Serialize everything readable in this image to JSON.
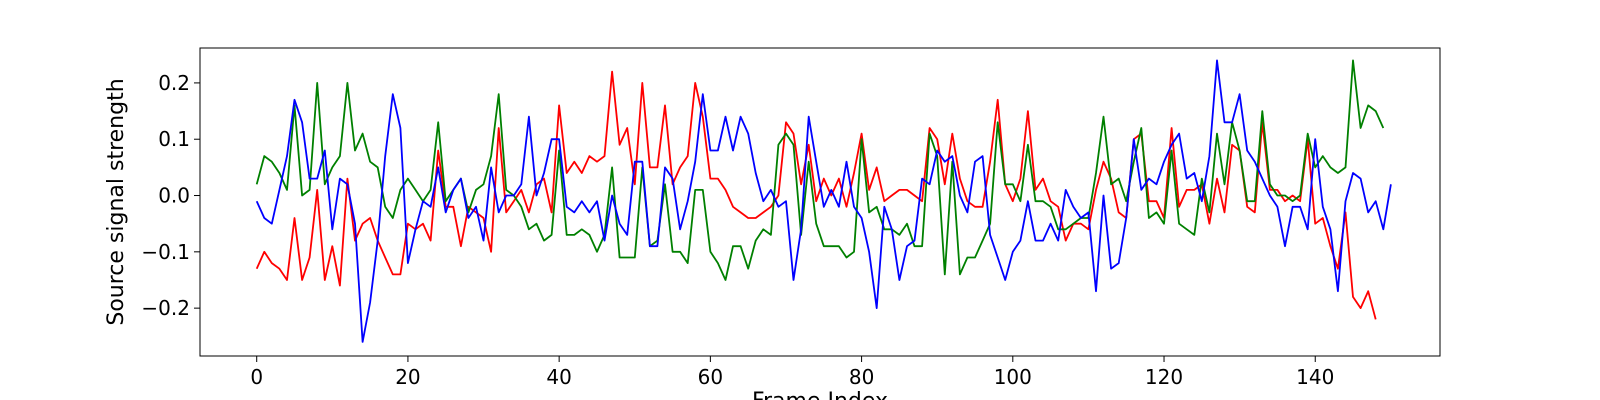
{
  "chart_data": {
    "type": "line",
    "title": "",
    "xlabel": "Frame Index",
    "ylabel": "Source signal strength",
    "xlim": [
      -7.5,
      156.5
    ],
    "ylim": [
      -0.285,
      0.262
    ],
    "xticks": [
      0,
      20,
      40,
      60,
      80,
      100,
      120,
      140
    ],
    "yticks": [
      -0.2,
      -0.1,
      0.0,
      0.1,
      0.2
    ],
    "ytick_labels": [
      "−0.2",
      "−0.1",
      "0.0",
      "0.1",
      "0.2"
    ],
    "grid": false,
    "legend": "none",
    "series": [
      {
        "color": "#ff0000",
        "values": [
          -0.13,
          -0.1,
          -0.12,
          -0.13,
          -0.15,
          -0.04,
          -0.15,
          -0.11,
          0.01,
          -0.15,
          -0.09,
          -0.16,
          0.03,
          -0.08,
          -0.05,
          -0.04,
          -0.08,
          -0.11,
          -0.14,
          -0.14,
          -0.05,
          -0.06,
          -0.05,
          -0.08,
          0.08,
          -0.02,
          -0.02,
          -0.09,
          -0.02,
          -0.03,
          -0.04,
          -0.1,
          0.12,
          -0.03,
          -0.01,
          0.01,
          -0.03,
          0.02,
          0.03,
          -0.03,
          0.16,
          0.04,
          0.06,
          0.04,
          0.07,
          0.06,
          0.07,
          0.22,
          0.09,
          0.12,
          0.02,
          0.2,
          0.05,
          0.05,
          0.16,
          0.02,
          0.05,
          0.07,
          0.2,
          0.14,
          0.03,
          0.03,
          0.01,
          -0.02,
          -0.03,
          -0.04,
          -0.04,
          -0.03,
          -0.02,
          0.0,
          0.13,
          0.11,
          0.02,
          0.09,
          -0.01,
          0.03,
          0.0,
          0.03,
          -0.02,
          0.04,
          0.11,
          0.01,
          0.05,
          -0.01,
          0.0,
          0.01,
          0.01,
          0.0,
          -0.01,
          0.12,
          0.1,
          0.02,
          0.11,
          0.03,
          -0.01,
          -0.02,
          -0.02,
          0.06,
          0.17,
          0.02,
          -0.01,
          0.03,
          0.15,
          0.01,
          0.03,
          -0.01,
          -0.02,
          -0.08,
          -0.05,
          -0.05,
          -0.06,
          0.01,
          0.06,
          0.03,
          -0.03,
          -0.04,
          0.1,
          0.11,
          -0.01,
          -0.01,
          -0.04,
          0.12,
          -0.02,
          0.01,
          0.01,
          0.02,
          -0.05,
          0.03,
          -0.03,
          0.09,
          0.08,
          -0.02,
          -0.03,
          0.13,
          0.01,
          0.01,
          -0.01,
          0.0,
          -0.01,
          0.1,
          -0.05,
          -0.04,
          -0.09,
          -0.13,
          -0.03,
          -0.18,
          -0.2,
          -0.17,
          -0.22
        ]
      },
      {
        "color": "#008000",
        "values": [
          0.02,
          0.07,
          0.06,
          0.04,
          0.01,
          0.16,
          0.0,
          0.01,
          0.2,
          0.02,
          0.05,
          0.07,
          0.2,
          0.08,
          0.11,
          0.06,
          0.05,
          -0.02,
          -0.04,
          0.01,
          0.03,
          0.01,
          -0.01,
          0.01,
          0.13,
          -0.01,
          0.01,
          0.03,
          -0.03,
          0.01,
          0.02,
          0.07,
          0.18,
          0.01,
          0.0,
          -0.02,
          -0.06,
          -0.05,
          -0.08,
          -0.07,
          0.08,
          -0.07,
          -0.07,
          -0.06,
          -0.07,
          -0.1,
          -0.07,
          0.05,
          -0.11,
          -0.11,
          -0.11,
          0.05,
          -0.09,
          -0.08,
          0.02,
          -0.1,
          -0.1,
          -0.12,
          0.01,
          0.01,
          -0.1,
          -0.12,
          -0.15,
          -0.09,
          -0.09,
          -0.13,
          -0.08,
          -0.06,
          -0.07,
          0.09,
          0.11,
          0.09,
          -0.07,
          0.06,
          -0.05,
          -0.09,
          -0.09,
          -0.09,
          -0.11,
          -0.1,
          0.1,
          -0.03,
          -0.02,
          -0.06,
          -0.06,
          -0.07,
          -0.05,
          -0.09,
          -0.09,
          0.11,
          0.07,
          -0.14,
          0.06,
          -0.14,
          -0.11,
          -0.11,
          -0.08,
          -0.05,
          0.13,
          0.02,
          0.02,
          -0.01,
          0.09,
          -0.01,
          -0.01,
          -0.02,
          -0.06,
          -0.06,
          -0.05,
          -0.04,
          -0.04,
          0.04,
          0.14,
          0.02,
          0.03,
          -0.01,
          0.06,
          0.12,
          -0.04,
          -0.03,
          -0.05,
          0.08,
          -0.05,
          -0.06,
          -0.07,
          0.03,
          -0.03,
          0.11,
          0.02,
          0.13,
          0.08,
          -0.01,
          -0.01,
          0.15,
          0.02,
          0.0,
          0.0,
          -0.01,
          0.0,
          0.11,
          0.05,
          0.07,
          0.05,
          0.04,
          0.05,
          0.24,
          0.12,
          0.16,
          0.15,
          0.12
        ]
      },
      {
        "color": "#0000ff",
        "values": [
          -0.01,
          -0.04,
          -0.05,
          0.01,
          0.07,
          0.17,
          0.13,
          0.03,
          0.03,
          0.08,
          -0.06,
          0.03,
          0.02,
          -0.05,
          -0.26,
          -0.19,
          -0.08,
          0.07,
          0.18,
          0.12,
          -0.12,
          -0.06,
          -0.01,
          -0.02,
          0.05,
          -0.03,
          0.01,
          0.03,
          -0.04,
          -0.02,
          -0.08,
          0.05,
          -0.03,
          0.0,
          0.0,
          0.02,
          0.14,
          0.0,
          0.04,
          0.1,
          0.1,
          -0.02,
          -0.03,
          -0.01,
          -0.03,
          -0.01,
          -0.08,
          0.0,
          -0.05,
          -0.07,
          0.06,
          0.06,
          -0.09,
          -0.09,
          0.05,
          0.03,
          -0.06,
          -0.01,
          0.06,
          0.18,
          0.08,
          0.08,
          0.14,
          0.08,
          0.14,
          0.11,
          0.04,
          -0.01,
          0.01,
          -0.02,
          -0.01,
          -0.15,
          -0.06,
          0.14,
          0.06,
          -0.02,
          0.01,
          -0.02,
          0.06,
          -0.02,
          -0.04,
          -0.1,
          -0.2,
          -0.02,
          -0.06,
          -0.15,
          -0.09,
          -0.08,
          0.03,
          0.02,
          0.08,
          0.06,
          0.07,
          0.0,
          -0.03,
          0.06,
          0.07,
          -0.07,
          -0.11,
          -0.15,
          -0.1,
          -0.08,
          -0.01,
          -0.08,
          -0.08,
          -0.05,
          -0.08,
          0.01,
          -0.02,
          -0.04,
          -0.03,
          -0.17,
          0.0,
          -0.13,
          -0.12,
          -0.04,
          0.1,
          0.01,
          0.03,
          0.02,
          0.06,
          0.09,
          0.11,
          0.03,
          0.04,
          -0.01,
          0.07,
          0.24,
          0.13,
          0.13,
          0.18,
          0.08,
          0.06,
          0.03,
          0.0,
          -0.02,
          -0.09,
          -0.02,
          -0.02,
          -0.06,
          0.1,
          -0.02,
          -0.06,
          -0.17,
          -0.01,
          0.04,
          0.03,
          -0.03,
          -0.01,
          -0.06,
          0.02
        ]
      }
    ]
  }
}
